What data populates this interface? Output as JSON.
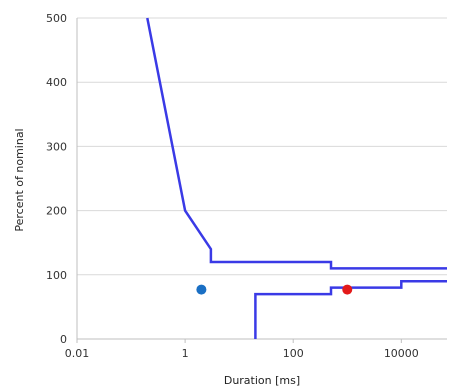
{
  "chart_data": {
    "type": "line",
    "title": "",
    "xlabel": "Duration [ms]",
    "ylabel": "Percent of nominal",
    "x_scale": "log",
    "xlim": [
      0.01,
      70000
    ],
    "ylim": [
      0,
      500
    ],
    "x_ticks": [
      {
        "value": 0.01,
        "label": "0.01"
      },
      {
        "value": 1,
        "label": "1"
      },
      {
        "value": 100,
        "label": "100"
      },
      {
        "value": 10000,
        "label": "10000"
      }
    ],
    "y_ticks": [
      {
        "value": 0,
        "label": "0"
      },
      {
        "value": 100,
        "label": "100"
      },
      {
        "value": 200,
        "label": "200"
      },
      {
        "value": 300,
        "label": "300"
      },
      {
        "value": 400,
        "label": "400"
      },
      {
        "value": 500,
        "label": "500"
      }
    ],
    "grid": "horizontal",
    "legend": "none",
    "series": [
      {
        "color": "#3a3ae6",
        "points": [
          [
            0.2,
            500
          ],
          [
            1,
            200
          ],
          [
            3,
            140
          ],
          [
            3,
            120
          ],
          [
            500,
            120
          ],
          [
            500,
            110
          ],
          [
            70000,
            110
          ]
        ]
      },
      {
        "color": "#3a3ae6",
        "points": [
          [
            20,
            0
          ],
          [
            20,
            70
          ],
          [
            500,
            70
          ],
          [
            500,
            80
          ],
          [
            10000,
            80
          ],
          [
            10000,
            90
          ],
          [
            70000,
            90
          ]
        ]
      }
    ],
    "markers": [
      {
        "x": 2,
        "y": 77,
        "color": "#1a6fc4"
      },
      {
        "x": 1000,
        "y": 77,
        "color": "#e31a1a"
      }
    ]
  }
}
